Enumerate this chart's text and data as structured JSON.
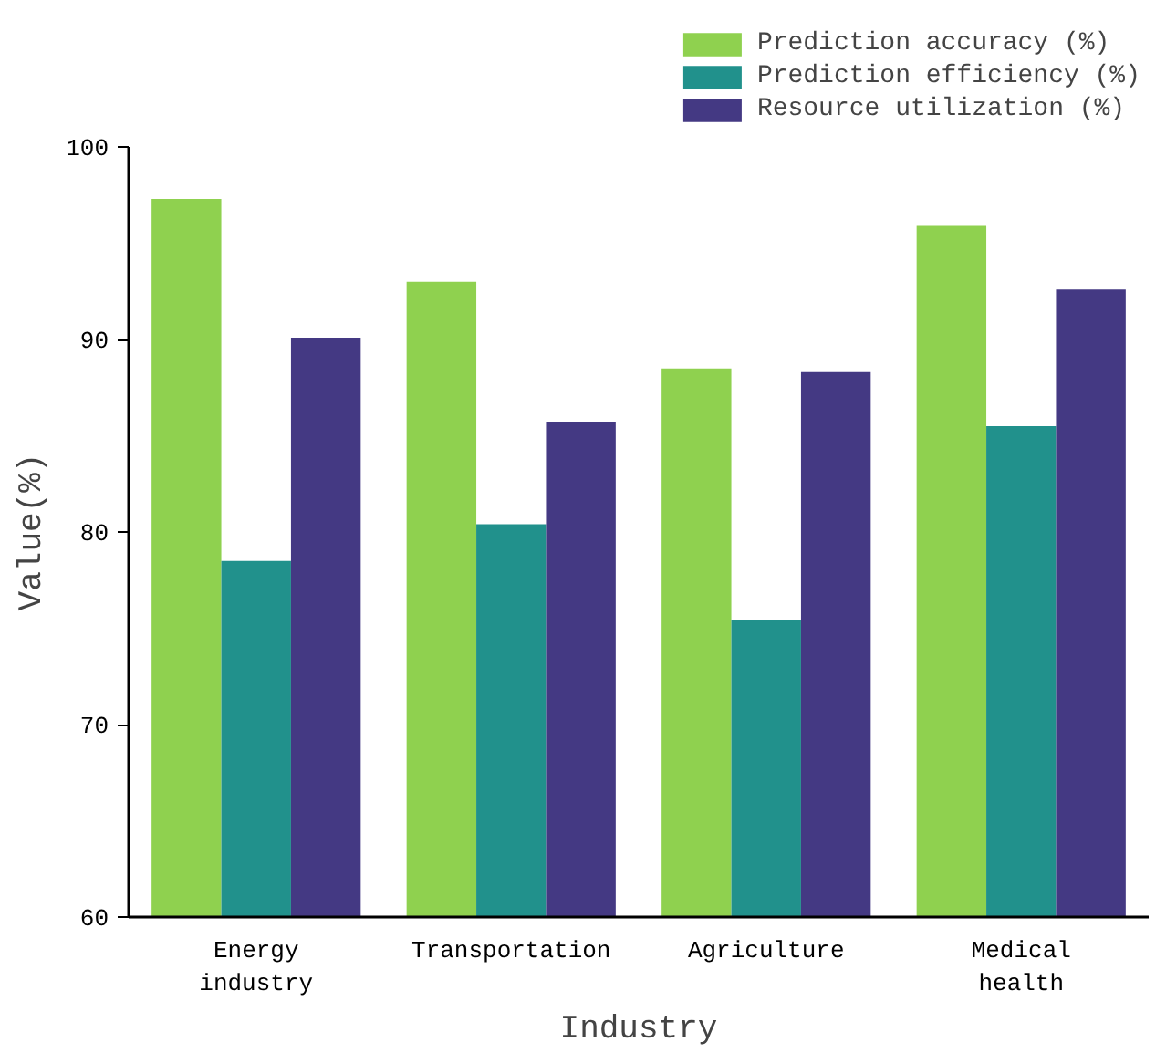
{
  "chart_data": {
    "type": "bar",
    "xlabel": "Industry",
    "ylabel": "Value(%)",
    "categories": [
      "Energy\nindustry",
      "Transportation",
      "Agriculture",
      "Medical\nhealth"
    ],
    "series": [
      {
        "name": "Prediction accuracy (%)",
        "color": "#8fd14f",
        "values": [
          97.3,
          93.0,
          88.5,
          95.9
        ]
      },
      {
        "name": "Prediction efficiency (%)",
        "color": "#21918c",
        "values": [
          78.5,
          80.4,
          75.4,
          85.5
        ]
      },
      {
        "name": "Resource utilization (%)",
        "color": "#443983",
        "values": [
          90.1,
          85.7,
          88.3,
          92.6
        ]
      }
    ],
    "ylim": [
      60,
      100
    ],
    "yticks": [
      60,
      70,
      80,
      90,
      100
    ],
    "grid": false,
    "legend": "top right"
  }
}
